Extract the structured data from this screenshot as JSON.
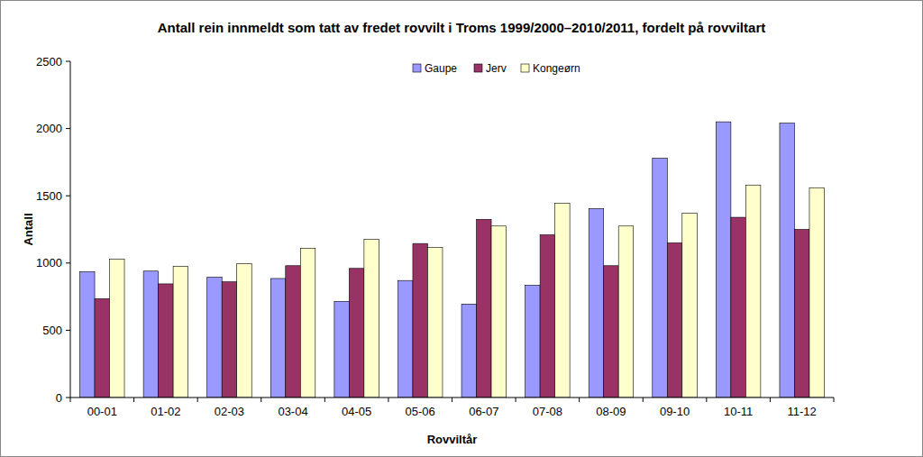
{
  "chart_data": {
    "type": "bar",
    "title": "Antall rein innmeldt som tatt av fredet rovvilt i Troms 1999/2000–2010/2011, fordelt på rovviltart",
    "x_label": "Rovviltår",
    "y_label": "Antall",
    "categories": [
      "00-01",
      "01-02",
      "02-03",
      "03-04",
      "04-05",
      "05-06",
      "06-07",
      "07-08",
      "08-09",
      "09-10",
      "10-11",
      "11-12"
    ],
    "series": [
      {
        "name": "Gaupe",
        "color": "#9999ff",
        "values": [
          935,
          940,
          895,
          885,
          715,
          870,
          695,
          835,
          1405,
          1780,
          2050,
          2040
        ]
      },
      {
        "name": "Jerv",
        "color": "#993366",
        "values": [
          735,
          845,
          860,
          980,
          960,
          1145,
          1325,
          1210,
          980,
          1150,
          1340,
          1250
        ]
      },
      {
        "name": "Kongeørn",
        "color": "#ffffcc",
        "values": [
          1030,
          975,
          995,
          1110,
          1175,
          1115,
          1275,
          1445,
          1275,
          1370,
          1580,
          1560
        ]
      }
    ],
    "ylim": [
      0,
      2500
    ],
    "yticks": [
      0,
      500,
      1000,
      1500,
      2000,
      2500
    ],
    "grid": false,
    "legend": "top"
  }
}
